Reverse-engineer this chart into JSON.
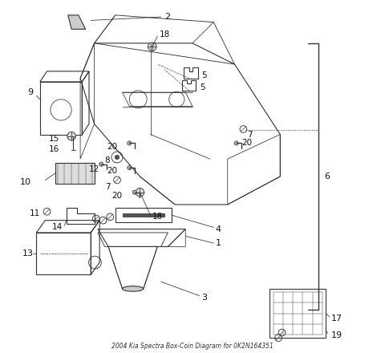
{
  "title": "2004 Kia Spectra Box-Coin Diagram for 0K2N164351",
  "bg_color": "#ffffff",
  "line_color": "#333333",
  "figsize": [
    4.8,
    4.4
  ],
  "dpi": 100
}
